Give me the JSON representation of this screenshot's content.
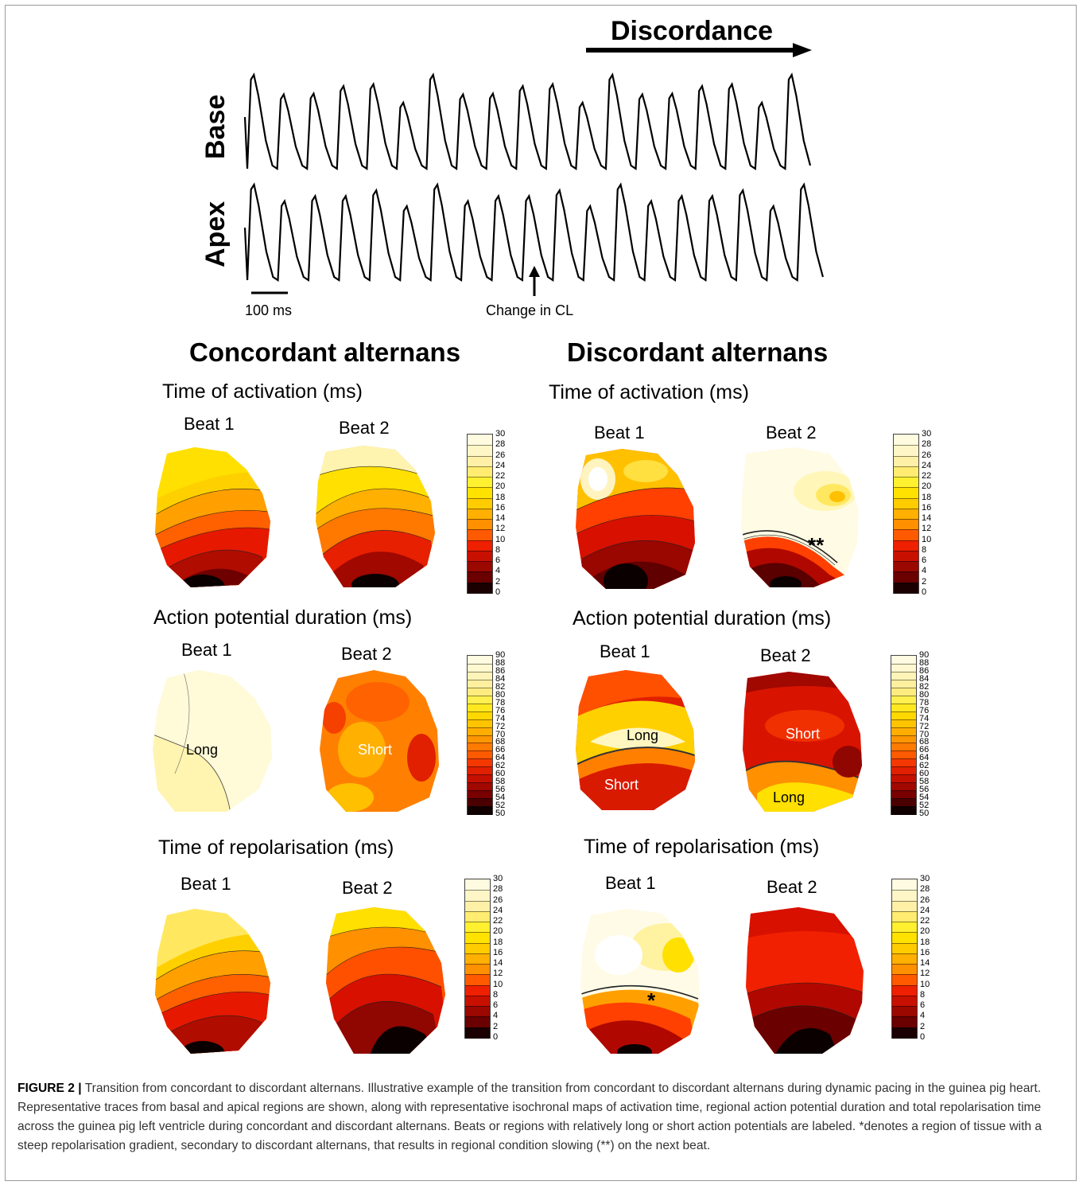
{
  "discordance_label": "Discordance",
  "trace_labels": {
    "base": "Base",
    "apex": "Apex"
  },
  "scale_bar_label": "100 ms",
  "change_label": "Change in CL",
  "columns": {
    "left": {
      "title": "Concordant alternans"
    },
    "right": {
      "title": "Discordant alternans"
    }
  },
  "rows": {
    "activation": "Time of activation (ms)",
    "apd": "Action potential duration (ms)",
    "repolarisation": "Time of repolarisation (ms)"
  },
  "beat_labels": {
    "beat1": "Beat 1",
    "beat2": "Beat 2"
  },
  "map_labels": {
    "conc_apd_b1": "Long",
    "conc_apd_b2": "Short",
    "disc_apd_b1_long": "Long",
    "disc_apd_b1_short": "Short",
    "disc_apd_b2_short": "Short",
    "disc_apd_b2_long": "Long",
    "disc_act_b2_marker": "**",
    "disc_rep_b1_marker": "*"
  },
  "colorbars": {
    "time_ticks": [
      "30",
      "28",
      "26",
      "24",
      "22",
      "20",
      "18",
      "16",
      "14",
      "12",
      "10",
      "8",
      "6",
      "4",
      "2",
      "0"
    ],
    "apd_ticks": [
      "90",
      "88",
      "86",
      "84",
      "82",
      "80",
      "78",
      "76",
      "74",
      "72",
      "70",
      "68",
      "66",
      "64",
      "62",
      "60",
      "58",
      "56",
      "54",
      "52",
      "50"
    ],
    "time_colors": [
      "#fffbe0",
      "#fff6c8",
      "#fff0a8",
      "#ffec70",
      "#fff030",
      "#ffe200",
      "#ffcc00",
      "#ffb000",
      "#ff9000",
      "#ff5a00",
      "#ee2000",
      "#c81000",
      "#9a0800",
      "#6a0000",
      "#1a0000"
    ],
    "apd_colors": [
      "#fffbe0",
      "#fff8d0",
      "#fff4b8",
      "#fff0a0",
      "#ffec80",
      "#fff050",
      "#ffe820",
      "#ffd800",
      "#ffc400",
      "#ffae00",
      "#ff9600",
      "#ff7a00",
      "#ff5a00",
      "#f53800",
      "#e02000",
      "#c41000",
      "#a00800",
      "#780000",
      "#4a0000",
      "#100000"
    ]
  },
  "caption": {
    "label": "FIGURE 2 |",
    "text": "Transition from concordant to discordant alternans. Illustrative example of the transition from concordant to discordant alternans during dynamic pacing in the guinea pig heart. Representative traces from basal and apical regions are shown, along with representative isochronal maps of activation time, regional action potential duration and total repolarisation time across the guinea pig left ventricle during concordant and discordant alternans. Beats or regions with relatively long or short action potentials are labeled. *denotes a region of tissue with a steep repolarisation gradient, secondary to discordant alternans, that results in regional condition slowing (**) on the next beat."
  }
}
